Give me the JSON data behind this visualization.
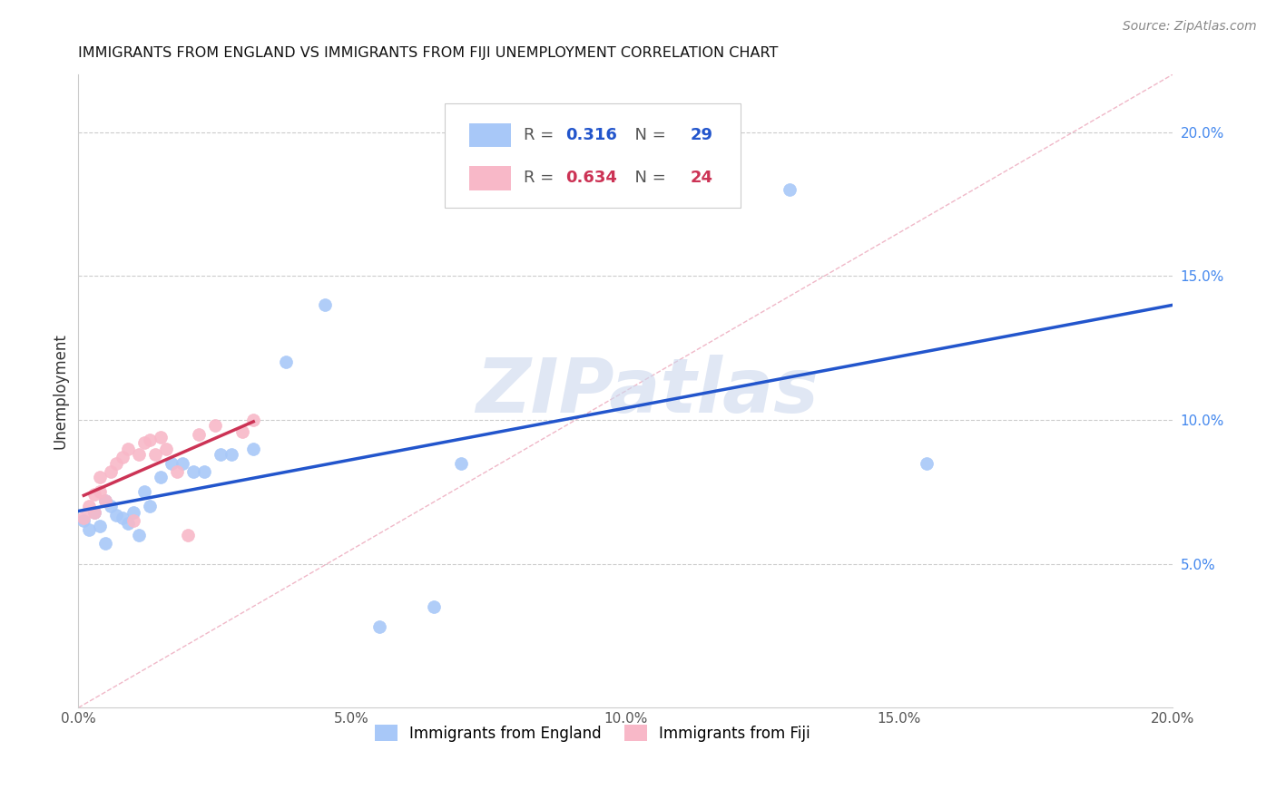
{
  "title": "IMMIGRANTS FROM ENGLAND VS IMMIGRANTS FROM FIJI UNEMPLOYMENT CORRELATION CHART",
  "source": "Source: ZipAtlas.com",
  "ylabel": "Unemployment",
  "x_min": 0.0,
  "x_max": 0.2,
  "y_min": 0.0,
  "y_max": 0.22,
  "x_ticks": [
    0.0,
    0.05,
    0.1,
    0.15,
    0.2
  ],
  "x_tick_labels": [
    "0.0%",
    "5.0%",
    "10.0%",
    "15.0%",
    "20.0%"
  ],
  "y_ticks": [
    0.05,
    0.1,
    0.15,
    0.2
  ],
  "y_tick_labels": [
    "5.0%",
    "10.0%",
    "15.0%",
    "20.0%"
  ],
  "england_R": 0.316,
  "england_N": 29,
  "fiji_R": 0.634,
  "fiji_N": 24,
  "england_color": "#a8c8f8",
  "fiji_color": "#f8b8c8",
  "england_line_color": "#2255cc",
  "fiji_line_color": "#cc3355",
  "diagonal_color": "#f0b8c8",
  "watermark_text": "ZIPatlas",
  "watermark_color": "#ddeeff",
  "england_legend": "Immigrants from England",
  "fiji_legend": "Immigrants from Fiji",
  "england_x": [
    0.001,
    0.002,
    0.003,
    0.004,
    0.005,
    0.005,
    0.006,
    0.007,
    0.008,
    0.009,
    0.01,
    0.011,
    0.012,
    0.013,
    0.015,
    0.017,
    0.019,
    0.021,
    0.023,
    0.026,
    0.028,
    0.032,
    0.038,
    0.045,
    0.055,
    0.065,
    0.07,
    0.13,
    0.155
  ],
  "england_y": [
    0.065,
    0.062,
    0.068,
    0.063,
    0.057,
    0.072,
    0.07,
    0.067,
    0.066,
    0.064,
    0.068,
    0.06,
    0.075,
    0.07,
    0.08,
    0.085,
    0.085,
    0.082,
    0.082,
    0.088,
    0.088,
    0.09,
    0.12,
    0.14,
    0.028,
    0.035,
    0.085,
    0.18,
    0.085
  ],
  "fiji_x": [
    0.001,
    0.002,
    0.003,
    0.003,
    0.004,
    0.004,
    0.005,
    0.006,
    0.007,
    0.008,
    0.009,
    0.01,
    0.011,
    0.012,
    0.013,
    0.014,
    0.015,
    0.016,
    0.018,
    0.02,
    0.022,
    0.025,
    0.03,
    0.032
  ],
  "fiji_y": [
    0.066,
    0.07,
    0.068,
    0.074,
    0.075,
    0.08,
    0.072,
    0.082,
    0.085,
    0.087,
    0.09,
    0.065,
    0.088,
    0.092,
    0.093,
    0.088,
    0.094,
    0.09,
    0.082,
    0.06,
    0.095,
    0.098,
    0.096,
    0.1
  ]
}
